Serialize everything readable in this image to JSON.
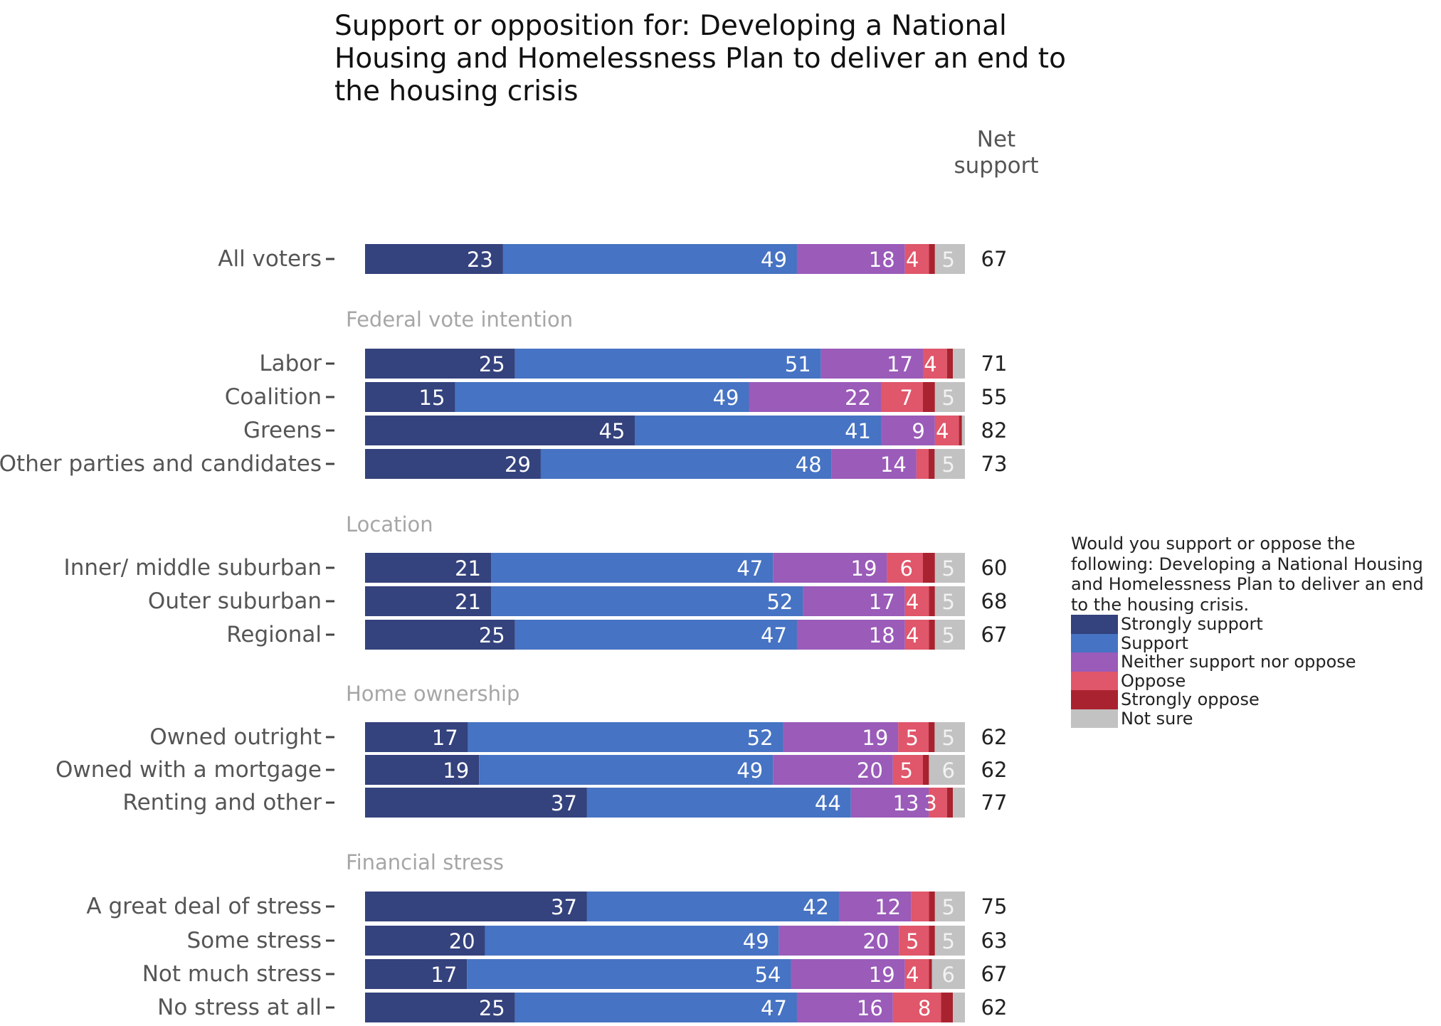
{
  "chart_data": {
    "type": "bar",
    "orientation": "horizontal",
    "stacked": true,
    "title": "Support or opposition for: Developing a National Housing and Homelessness Plan to deliver an end to the housing crisis",
    "net_header": "Net support",
    "legend": {
      "title": "Would you support or oppose the following: Developing a National Housing and Homelessness Plan to deliver an end to the housing crisis.",
      "placement": "right"
    },
    "series": [
      {
        "name": "Strongly support",
        "color": "#34427d"
      },
      {
        "name": "Support",
        "color": "#4673c3"
      },
      {
        "name": "Neither support nor oppose",
        "color": "#9a5bb9"
      },
      {
        "name": "Oppose",
        "color": "#e0566a"
      },
      {
        "name": "Strongly oppose",
        "color": "#a8232f"
      },
      {
        "name": "Not sure",
        "color": "#c2c2c2"
      }
    ],
    "groups": [
      {
        "label": "",
        "rows": [
          {
            "label": "All voters",
            "values": [
              23,
              49,
              18,
              4,
              1,
              5
            ],
            "shown": [
              "23",
              "49",
              "18",
              "4",
              "",
              "5"
            ],
            "net": 67
          }
        ]
      },
      {
        "label": "Federal vote intention",
        "rows": [
          {
            "label": "Labor",
            "values": [
              25,
              51,
              17,
              4,
              1,
              2
            ],
            "shown": [
              "25",
              "51",
              "17",
              "4",
              "",
              ""
            ],
            "net": 71
          },
          {
            "label": "Coalition",
            "values": [
              15,
              49,
              22,
              7,
              2,
              5
            ],
            "shown": [
              "15",
              "49",
              "22",
              "7",
              "",
              "5"
            ],
            "net": 55
          },
          {
            "label": "Greens",
            "values": [
              45,
              41,
              9,
              4,
              0.5,
              0.5
            ],
            "shown": [
              "45",
              "41",
              "9",
              "4",
              "",
              ""
            ],
            "net": 82
          },
          {
            "label": "Other parties and candidates",
            "values": [
              29,
              48,
              14,
              2,
              1,
              5
            ],
            "shown": [
              "29",
              "48",
              "14",
              "",
              "",
              "5"
            ],
            "net": 73
          }
        ]
      },
      {
        "label": "Location",
        "rows": [
          {
            "label": "Inner/ middle suburban",
            "values": [
              21,
              47,
              19,
              6,
              2,
              5
            ],
            "shown": [
              "21",
              "47",
              "19",
              "6",
              "",
              "5"
            ],
            "net": 60
          },
          {
            "label": "Outer suburban",
            "values": [
              21,
              52,
              17,
              4,
              1,
              5
            ],
            "shown": [
              "21",
              "52",
              "17",
              "4",
              "",
              "5"
            ],
            "net": 68
          },
          {
            "label": "Regional",
            "values": [
              25,
              47,
              18,
              4,
              1,
              5
            ],
            "shown": [
              "25",
              "47",
              "18",
              "4",
              "",
              "5"
            ],
            "net": 67
          }
        ]
      },
      {
        "label": "Home ownership",
        "rows": [
          {
            "label": "Owned outright",
            "values": [
              17,
              52,
              19,
              5,
              1,
              5
            ],
            "shown": [
              "17",
              "52",
              "19",
              "5",
              "",
              "5"
            ],
            "net": 62
          },
          {
            "label": "Owned with a mortgage",
            "values": [
              19,
              49,
              20,
              5,
              1,
              6
            ],
            "shown": [
              "19",
              "49",
              "20",
              "5",
              "",
              "6"
            ],
            "net": 62
          },
          {
            "label": "Renting and other",
            "values": [
              37,
              44,
              13,
              3,
              1,
              2
            ],
            "shown": [
              "37",
              "44",
              "13",
              "3",
              "",
              ""
            ],
            "net": 77
          }
        ]
      },
      {
        "label": "Financial stress",
        "rows": [
          {
            "label": "A great deal of stress",
            "values": [
              37,
              42,
              12,
              3,
              1,
              5
            ],
            "shown": [
              "37",
              "42",
              "12",
              "",
              "",
              "5"
            ],
            "net": 75
          },
          {
            "label": "Some stress",
            "values": [
              20,
              49,
              20,
              5,
              1,
              5
            ],
            "shown": [
              "20",
              "49",
              "20",
              "5",
              "",
              "5"
            ],
            "net": 63
          },
          {
            "label": "Not much stress",
            "values": [
              17,
              54,
              19,
              4,
              0.5,
              5.5
            ],
            "shown": [
              "17",
              "54",
              "19",
              "4",
              "",
              "6"
            ],
            "net": 67
          },
          {
            "label": "No stress at all",
            "values": [
              25,
              47,
              16,
              8,
              2,
              2
            ],
            "shown": [
              "25",
              "47",
              "16",
              "8",
              "",
              ""
            ],
            "net": 62
          }
        ]
      }
    ]
  }
}
